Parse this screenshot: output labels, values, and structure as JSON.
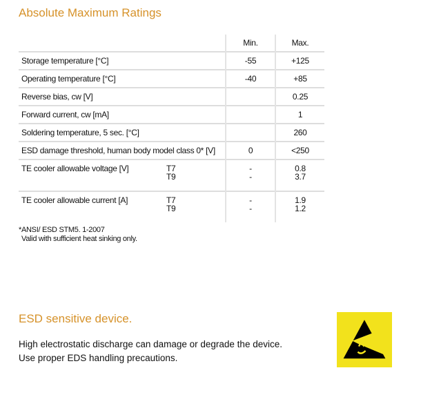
{
  "title": "Absolute Maximum Ratings",
  "table": {
    "headers": [
      "",
      "Min.",
      "Max."
    ],
    "rows": [
      {
        "label": "Storage temperature [°C]",
        "min": "-55",
        "max": "+125"
      },
      {
        "label": "Operating temperature [°C]",
        "min": "-40",
        "max": "+85"
      },
      {
        "label": "Reverse bias, cw [V]",
        "min": "",
        "max": "0.25"
      },
      {
        "label": "Forward current, cw [mA]",
        "min": "",
        "max": "1"
      },
      {
        "label": "Soldering temperature, 5 sec. [°C]",
        "min": "",
        "max": "260"
      },
      {
        "label": "ESD damage threshold, human body model class 0* [V]",
        "min": "0",
        "max": "<250"
      }
    ],
    "multi": [
      {
        "label": "TE cooler allowable voltage [V]",
        "variants": [
          "T7",
          "T9"
        ],
        "min": [
          "-",
          "-"
        ],
        "max": [
          "0.8",
          "3.7"
        ]
      },
      {
        "label": "TE cooler allowable current [A]",
        "variants": [
          "T7",
          "T9"
        ],
        "min": [
          "-",
          "-"
        ],
        "max": [
          "1.9",
          "1.2"
        ]
      }
    ]
  },
  "notes": [
    "*ANSI/ ESD STM5. 1-2007",
    "Valid with sufficient heat sinking only."
  ],
  "esd": {
    "title": "ESD sensitive device.",
    "lines": [
      "High electrostatic discharge can damage or degrade the device.",
      "Use proper EDS handling precautions."
    ],
    "icon": "esd-warning-icon",
    "color": "#f2e21c"
  },
  "colors": {
    "accent": "#d6922a"
  }
}
